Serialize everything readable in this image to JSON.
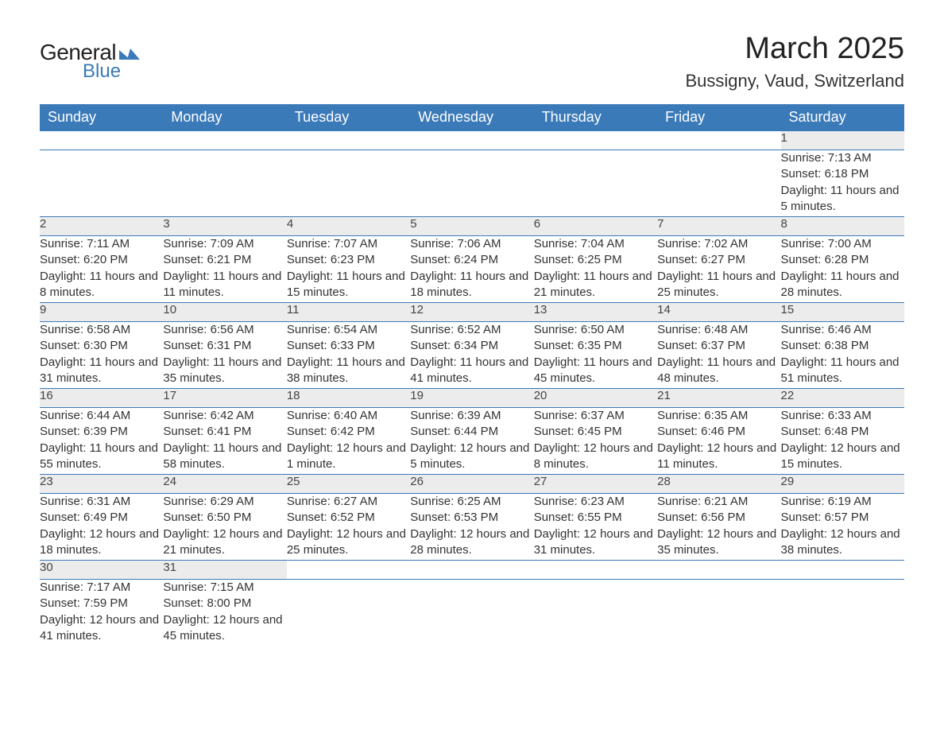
{
  "header": {
    "logo_general": "General",
    "logo_blue": "Blue",
    "month_title": "March 2025",
    "location": "Bussigny, Vaud, Switzerland"
  },
  "colors": {
    "header_bg": "#3b7ab8",
    "header_text": "#ffffff",
    "daynum_bg": "#ececec",
    "border": "#3b7ab8",
    "text": "#333333",
    "logo_blue": "#3b7ab8"
  },
  "typography": {
    "month_title_size": 38,
    "location_size": 22,
    "weekday_size": 18,
    "daynum_size": 18,
    "detail_size": 15
  },
  "weekdays": [
    "Sunday",
    "Monday",
    "Tuesday",
    "Wednesday",
    "Thursday",
    "Friday",
    "Saturday"
  ],
  "weeks": [
    [
      null,
      null,
      null,
      null,
      null,
      null,
      {
        "n": "1",
        "sunrise": "Sunrise: 7:13 AM",
        "sunset": "Sunset: 6:18 PM",
        "daylight": "Daylight: 11 hours and 5 minutes."
      }
    ],
    [
      {
        "n": "2",
        "sunrise": "Sunrise: 7:11 AM",
        "sunset": "Sunset: 6:20 PM",
        "daylight": "Daylight: 11 hours and 8 minutes."
      },
      {
        "n": "3",
        "sunrise": "Sunrise: 7:09 AM",
        "sunset": "Sunset: 6:21 PM",
        "daylight": "Daylight: 11 hours and 11 minutes."
      },
      {
        "n": "4",
        "sunrise": "Sunrise: 7:07 AM",
        "sunset": "Sunset: 6:23 PM",
        "daylight": "Daylight: 11 hours and 15 minutes."
      },
      {
        "n": "5",
        "sunrise": "Sunrise: 7:06 AM",
        "sunset": "Sunset: 6:24 PM",
        "daylight": "Daylight: 11 hours and 18 minutes."
      },
      {
        "n": "6",
        "sunrise": "Sunrise: 7:04 AM",
        "sunset": "Sunset: 6:25 PM",
        "daylight": "Daylight: 11 hours and 21 minutes."
      },
      {
        "n": "7",
        "sunrise": "Sunrise: 7:02 AM",
        "sunset": "Sunset: 6:27 PM",
        "daylight": "Daylight: 11 hours and 25 minutes."
      },
      {
        "n": "8",
        "sunrise": "Sunrise: 7:00 AM",
        "sunset": "Sunset: 6:28 PM",
        "daylight": "Daylight: 11 hours and 28 minutes."
      }
    ],
    [
      {
        "n": "9",
        "sunrise": "Sunrise: 6:58 AM",
        "sunset": "Sunset: 6:30 PM",
        "daylight": "Daylight: 11 hours and 31 minutes."
      },
      {
        "n": "10",
        "sunrise": "Sunrise: 6:56 AM",
        "sunset": "Sunset: 6:31 PM",
        "daylight": "Daylight: 11 hours and 35 minutes."
      },
      {
        "n": "11",
        "sunrise": "Sunrise: 6:54 AM",
        "sunset": "Sunset: 6:33 PM",
        "daylight": "Daylight: 11 hours and 38 minutes."
      },
      {
        "n": "12",
        "sunrise": "Sunrise: 6:52 AM",
        "sunset": "Sunset: 6:34 PM",
        "daylight": "Daylight: 11 hours and 41 minutes."
      },
      {
        "n": "13",
        "sunrise": "Sunrise: 6:50 AM",
        "sunset": "Sunset: 6:35 PM",
        "daylight": "Daylight: 11 hours and 45 minutes."
      },
      {
        "n": "14",
        "sunrise": "Sunrise: 6:48 AM",
        "sunset": "Sunset: 6:37 PM",
        "daylight": "Daylight: 11 hours and 48 minutes."
      },
      {
        "n": "15",
        "sunrise": "Sunrise: 6:46 AM",
        "sunset": "Sunset: 6:38 PM",
        "daylight": "Daylight: 11 hours and 51 minutes."
      }
    ],
    [
      {
        "n": "16",
        "sunrise": "Sunrise: 6:44 AM",
        "sunset": "Sunset: 6:39 PM",
        "daylight": "Daylight: 11 hours and 55 minutes."
      },
      {
        "n": "17",
        "sunrise": "Sunrise: 6:42 AM",
        "sunset": "Sunset: 6:41 PM",
        "daylight": "Daylight: 11 hours and 58 minutes."
      },
      {
        "n": "18",
        "sunrise": "Sunrise: 6:40 AM",
        "sunset": "Sunset: 6:42 PM",
        "daylight": "Daylight: 12 hours and 1 minute."
      },
      {
        "n": "19",
        "sunrise": "Sunrise: 6:39 AM",
        "sunset": "Sunset: 6:44 PM",
        "daylight": "Daylight: 12 hours and 5 minutes."
      },
      {
        "n": "20",
        "sunrise": "Sunrise: 6:37 AM",
        "sunset": "Sunset: 6:45 PM",
        "daylight": "Daylight: 12 hours and 8 minutes."
      },
      {
        "n": "21",
        "sunrise": "Sunrise: 6:35 AM",
        "sunset": "Sunset: 6:46 PM",
        "daylight": "Daylight: 12 hours and 11 minutes."
      },
      {
        "n": "22",
        "sunrise": "Sunrise: 6:33 AM",
        "sunset": "Sunset: 6:48 PM",
        "daylight": "Daylight: 12 hours and 15 minutes."
      }
    ],
    [
      {
        "n": "23",
        "sunrise": "Sunrise: 6:31 AM",
        "sunset": "Sunset: 6:49 PM",
        "daylight": "Daylight: 12 hours and 18 minutes."
      },
      {
        "n": "24",
        "sunrise": "Sunrise: 6:29 AM",
        "sunset": "Sunset: 6:50 PM",
        "daylight": "Daylight: 12 hours and 21 minutes."
      },
      {
        "n": "25",
        "sunrise": "Sunrise: 6:27 AM",
        "sunset": "Sunset: 6:52 PM",
        "daylight": "Daylight: 12 hours and 25 minutes."
      },
      {
        "n": "26",
        "sunrise": "Sunrise: 6:25 AM",
        "sunset": "Sunset: 6:53 PM",
        "daylight": "Daylight: 12 hours and 28 minutes."
      },
      {
        "n": "27",
        "sunrise": "Sunrise: 6:23 AM",
        "sunset": "Sunset: 6:55 PM",
        "daylight": "Daylight: 12 hours and 31 minutes."
      },
      {
        "n": "28",
        "sunrise": "Sunrise: 6:21 AM",
        "sunset": "Sunset: 6:56 PM",
        "daylight": "Daylight: 12 hours and 35 minutes."
      },
      {
        "n": "29",
        "sunrise": "Sunrise: 6:19 AM",
        "sunset": "Sunset: 6:57 PM",
        "daylight": "Daylight: 12 hours and 38 minutes."
      }
    ],
    [
      {
        "n": "30",
        "sunrise": "Sunrise: 7:17 AM",
        "sunset": "Sunset: 7:59 PM",
        "daylight": "Daylight: 12 hours and 41 minutes."
      },
      {
        "n": "31",
        "sunrise": "Sunrise: 7:15 AM",
        "sunset": "Sunset: 8:00 PM",
        "daylight": "Daylight: 12 hours and 45 minutes."
      },
      null,
      null,
      null,
      null,
      null
    ]
  ]
}
